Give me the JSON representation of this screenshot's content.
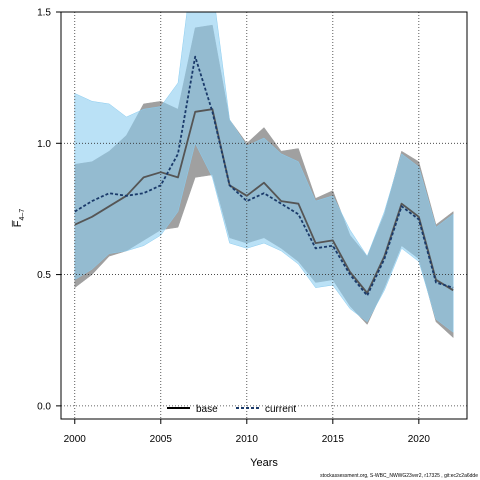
{
  "chart_data": {
    "type": "line",
    "xlabel": "Years",
    "ylabel": "F̅",
    "ylabel_sub": "4–7",
    "xlim": [
      1999.2,
      2022.8
    ],
    "ylim": [
      -0.05,
      1.5
    ],
    "xticks": [
      "2000",
      "2005",
      "2010",
      "2015",
      "2020"
    ],
    "yticks": [
      "0.0",
      "0.5",
      "1.0",
      "1.5"
    ],
    "grid": true,
    "legend_position": "bottom-center",
    "footer": "stockassessment.org, S-WBC_NWWG23ver2, r17325 , git:ec2c2a6dde",
    "x": [
      2000,
      2001,
      2002,
      2003,
      2004,
      2005,
      2006,
      2007,
      2008,
      2009,
      2010,
      2011,
      2012,
      2013,
      2014,
      2015,
      2016,
      2017,
      2018,
      2019,
      2020,
      2021,
      2022
    ],
    "series": [
      {
        "name": "base",
        "color": "#555555",
        "band_color": "#a0a0a0",
        "dash": false,
        "values": [
          0.69,
          0.72,
          0.76,
          0.8,
          0.87,
          0.89,
          0.87,
          1.12,
          1.13,
          0.84,
          0.8,
          0.85,
          0.78,
          0.77,
          0.62,
          0.63,
          0.51,
          0.43,
          0.57,
          0.77,
          0.72,
          0.48,
          0.44
        ],
        "lower": [
          0.45,
          0.5,
          0.57,
          0.59,
          0.63,
          0.67,
          0.68,
          0.87,
          0.88,
          0.64,
          0.62,
          0.64,
          0.6,
          0.55,
          0.47,
          0.48,
          0.38,
          0.31,
          0.45,
          0.61,
          0.56,
          0.32,
          0.26
        ],
        "upper": [
          0.92,
          0.93,
          0.97,
          1.03,
          1.15,
          1.16,
          1.13,
          1.44,
          1.45,
          1.09,
          1.0,
          1.06,
          0.97,
          0.98,
          0.79,
          0.82,
          0.65,
          0.57,
          0.73,
          0.97,
          0.93,
          0.69,
          0.74
        ]
      },
      {
        "name": "current",
        "color": "#1a3a6a",
        "band_color": "#8ccdf0",
        "dash": true,
        "values": [
          0.74,
          0.78,
          0.81,
          0.8,
          0.81,
          0.84,
          0.96,
          1.33,
          1.12,
          0.84,
          0.78,
          0.81,
          0.77,
          0.73,
          0.6,
          0.61,
          0.5,
          0.42,
          0.56,
          0.76,
          0.71,
          0.47,
          0.45
        ],
        "lower": [
          0.48,
          0.52,
          0.58,
          0.59,
          0.61,
          0.65,
          0.74,
          1.0,
          0.87,
          0.62,
          0.6,
          0.62,
          0.59,
          0.54,
          0.45,
          0.46,
          0.37,
          0.32,
          0.44,
          0.6,
          0.55,
          0.33,
          0.28
        ],
        "upper": [
          1.19,
          1.16,
          1.15,
          1.1,
          1.13,
          1.14,
          1.23,
          1.75,
          1.6,
          1.09,
          0.99,
          1.02,
          0.96,
          0.93,
          0.78,
          0.8,
          0.67,
          0.57,
          0.74,
          0.96,
          0.91,
          0.68,
          0.73
        ]
      }
    ]
  }
}
